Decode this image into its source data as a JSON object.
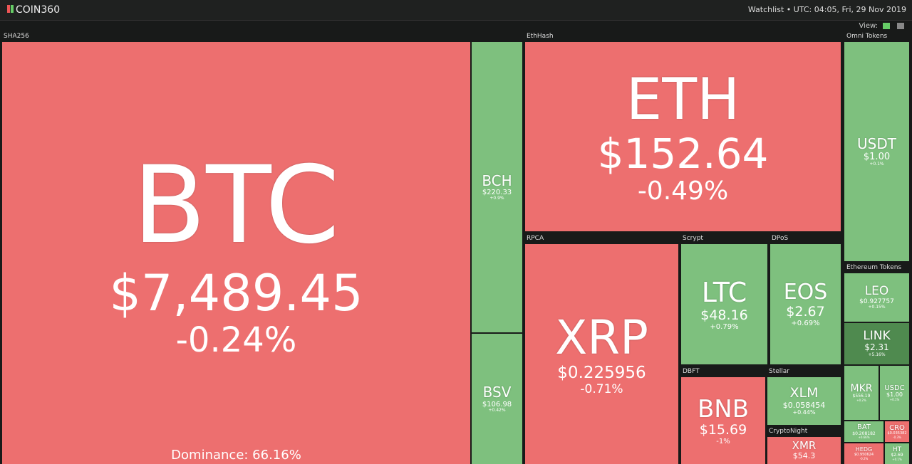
{
  "header": {
    "logo": "COIN360",
    "status": "Watchlist • UTC: 04:05, Fri, 29 Nov 2019",
    "view_label": "View:"
  },
  "groups": [
    {
      "label": "SHA256",
      "tiles": [
        {
          "symbol": "BTC",
          "price": "$7,489.45",
          "change": "-0.24%",
          "dominance": "Dominance: 66.16%"
        },
        {
          "symbol": "BCH",
          "price": "$220.33",
          "change": "+0.9%"
        },
        {
          "symbol": "BSV",
          "price": "$106.98",
          "change": "+0.42%"
        }
      ]
    },
    {
      "label": "EthHash",
      "tiles": [
        {
          "symbol": "ETH",
          "price": "$152.64",
          "change": "-0.49%"
        }
      ]
    },
    {
      "label": "RPCA",
      "tiles": [
        {
          "symbol": "XRP",
          "price": "$0.225956",
          "change": "-0.71%"
        }
      ]
    },
    {
      "label": "Scrypt",
      "tiles": [
        {
          "symbol": "LTC",
          "price": "$48.16",
          "change": "+0.79%"
        }
      ]
    },
    {
      "label": "DPoS",
      "tiles": [
        {
          "symbol": "EOS",
          "price": "$2.67",
          "change": "+0.69%"
        }
      ]
    },
    {
      "label": "DBFT",
      "tiles": [
        {
          "symbol": "BNB",
          "price": "$15.69",
          "change": "-1%"
        }
      ]
    },
    {
      "label": "Stellar",
      "tiles": [
        {
          "symbol": "XLM",
          "price": "$0.058454",
          "change": "+0.44%"
        }
      ]
    },
    {
      "label": "CryptoNight",
      "tiles": [
        {
          "symbol": "XMR",
          "price": "$54.3"
        }
      ]
    },
    {
      "label": "Omni Tokens",
      "tiles": [
        {
          "symbol": "USDT",
          "price": "$1.00",
          "change": "+0.1%"
        }
      ]
    },
    {
      "label": "Ethereum Tokens",
      "tiles": [
        {
          "symbol": "LEO",
          "price": "$0.927757",
          "change": "+0.15%"
        },
        {
          "symbol": "LINK",
          "price": "$2.31",
          "change": "+5.16%"
        },
        {
          "symbol": "MKR",
          "price": "$556.19",
          "change": "+0.2%"
        },
        {
          "symbol": "USDC",
          "price": "$1.00",
          "change": "+0.1%"
        },
        {
          "symbol": "BAT",
          "price": "$0.208182",
          "change": "+0.66%"
        },
        {
          "symbol": "CRO",
          "price": "$0.035382",
          "change": "-0.3%"
        },
        {
          "symbol": "HEDG",
          "price": "$0.950624",
          "change": "-0.2%"
        },
        {
          "symbol": "HT",
          "price": "$2.69",
          "change": "+0.1%"
        }
      ]
    }
  ]
}
